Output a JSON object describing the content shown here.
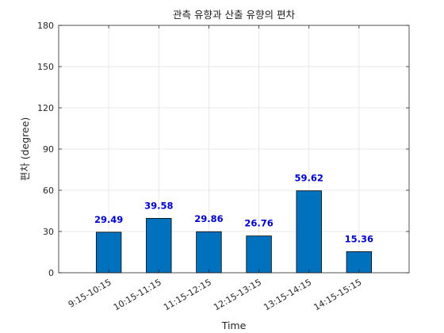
{
  "chart_data": {
    "type": "bar",
    "title": "관측 유향과 산출 유향의 편차",
    "xlabel": "Time",
    "ylabel": "편차 (degree)",
    "categories": [
      "9:15-10:15",
      "10:15-11:15",
      "11:15-12:15",
      "12:15-13:15",
      "13:15-14:15",
      "14:15-15:15"
    ],
    "values": [
      29.49,
      39.58,
      29.86,
      26.76,
      59.62,
      15.36
    ],
    "data_labels": [
      "29.49",
      "39.58",
      "29.86",
      "26.76",
      "59.62",
      "15.36"
    ],
    "ylim": [
      0,
      180
    ],
    "yticks": [
      0,
      30,
      60,
      90,
      120,
      150,
      180
    ],
    "grid": true,
    "bar_color": "#0072BD",
    "label_color": "#0000CC"
  }
}
